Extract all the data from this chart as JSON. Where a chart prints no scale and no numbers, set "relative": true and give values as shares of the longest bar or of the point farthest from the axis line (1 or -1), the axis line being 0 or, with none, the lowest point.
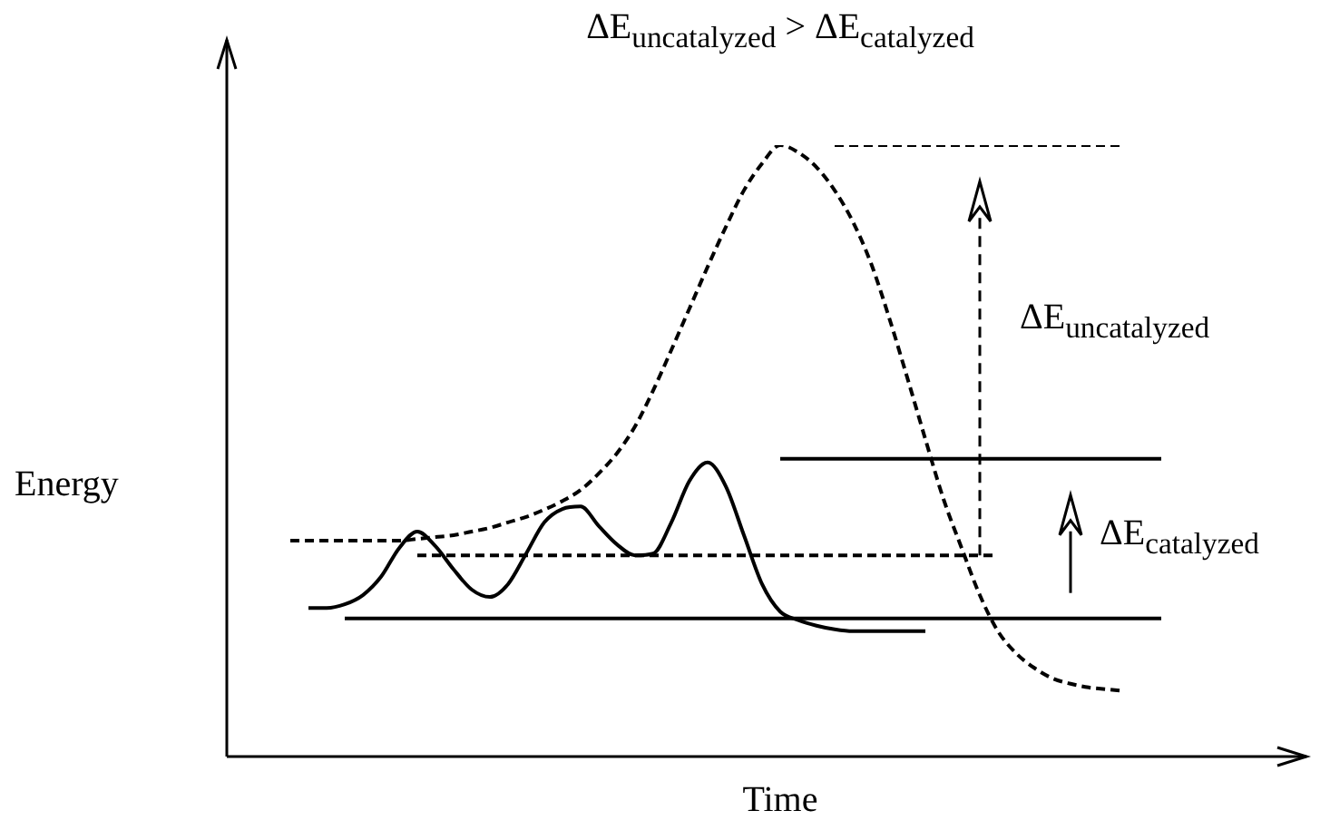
{
  "chart_data": {
    "type": "line",
    "relative": true,
    "title": "ΔE$_{uncatalyzed}$ > ΔE$_{catalyzed}$",
    "xlabel": "Time",
    "ylabel": "Energy",
    "annotations": [
      "ΔE$_{uncatalyzed}$",
      "ΔE$_{catalyzed}$"
    ],
    "legend": false,
    "marker": "none",
    "categories": [
      null,
      null,
      null,
      null,
      null,
      null,
      null,
      null,
      null,
      null,
      null,
      null,
      null,
      null,
      null,
      null,
      null,
      null,
      null,
      null,
      null,
      null,
      null,
      null,
      null,
      null,
      null,
      null,
      null,
      null,
      null,
      null,
      null,
      null,
      null,
      null,
      null,
      null,
      null,
      null,
      null,
      null,
      null,
      null,
      null,
      null,
      null,
      null,
      null
    ],
    "series": [
      {
        "color": "#000000",
        "line_style": "dashed",
        "values": [
          0.353,
          0.353,
          0.353,
          0.353,
          0.353,
          0.353,
          0.353,
          0.356,
          0.359,
          0.362,
          0.368,
          0.374,
          0.383,
          0.392,
          0.404,
          0.418,
          0.436,
          0.463,
          0.496,
          0.54,
          0.599,
          0.665,
          0.733,
          0.801,
          0.866,
          0.926,
          0.97,
          1,
          0.988,
          0.964,
          0.926,
          0.875,
          0.807,
          0.718,
          0.62,
          0.519,
          0.421,
          0.341,
          0.264,
          0.205,
          0.169,
          0.145,
          0.128,
          0.119,
          0.113,
          0.11,
          0.107,
          null,
          null
        ]
      },
      {
        "color": "#000000",
        "line_style": "solid",
        "values": [
          null,
          0.243,
          0.243,
          0.249,
          0.264,
          0.294,
          0.341,
          0.368,
          0.344,
          0.306,
          0.273,
          0.261,
          0.282,
          0.332,
          0.383,
          0.405,
          0.409,
          0.377,
          0.347,
          0.329,
          0.332,
          0.383,
          0.451,
          0.481,
          0.442,
          0.362,
          0.282,
          0.237,
          0.223,
          0.214,
          0.208,
          0.205,
          0.205,
          0.205,
          0.205,
          0.205,
          null,
          null,
          null,
          null,
          null,
          null,
          null,
          null,
          null,
          null,
          null,
          null,
          null
        ]
      },
      {
        "color": "#000000",
        "line_style": "dashed",
        "values": [
          null,
          null,
          null,
          null,
          null,
          null,
          null,
          0.329,
          0.329,
          0.329,
          0.329,
          0.329,
          0.329,
          0.329,
          0.329,
          0.329,
          0.329,
          0.329,
          0.329,
          0.329,
          0.329,
          0.329,
          0.329,
          0.329,
          0.329,
          0.329,
          0.329,
          0.329,
          0.329,
          0.329,
          0.329,
          0.329,
          0.329,
          0.329,
          0.329,
          0.329,
          0.329,
          0.329,
          0.329,
          0.329,
          null,
          null,
          null,
          null,
          null,
          null,
          null,
          null,
          null
        ]
      },
      {
        "color": "#000000",
        "line_style": "dashed",
        "values": [
          null,
          null,
          null,
          null,
          null,
          null,
          null,
          null,
          null,
          null,
          null,
          null,
          null,
          null,
          null,
          null,
          null,
          null,
          null,
          null,
          null,
          null,
          null,
          null,
          null,
          null,
          null,
          null,
          null,
          null,
          1,
          1,
          1,
          1,
          1,
          1,
          1,
          1,
          1,
          1,
          1,
          1,
          1,
          1,
          1,
          1,
          1,
          null,
          null
        ]
      },
      {
        "color": "#000000",
        "line_style": "solid",
        "values": [
          null,
          null,
          null,
          0.226,
          0.226,
          0.226,
          0.226,
          0.226,
          0.226,
          0.226,
          0.226,
          0.226,
          0.226,
          0.226,
          0.226,
          0.226,
          0.226,
          0.226,
          0.226,
          0.226,
          0.226,
          0.226,
          0.226,
          0.226,
          0.226,
          0.226,
          0.226,
          0.226,
          0.226,
          0.226,
          0.226,
          0.226,
          0.226,
          0.226,
          0.226,
          0.226,
          0.226,
          0.226,
          0.226,
          0.226,
          0.226,
          0.226,
          0.226,
          0.226,
          0.226,
          0.226,
          0.226,
          0.226,
          0.226
        ]
      },
      {
        "color": "#000000",
        "line_style": "solid",
        "values": [
          null,
          null,
          null,
          null,
          null,
          null,
          null,
          null,
          null,
          null,
          null,
          null,
          null,
          null,
          null,
          null,
          null,
          null,
          null,
          null,
          null,
          null,
          null,
          null,
          null,
          null,
          null,
          0.487,
          0.487,
          0.487,
          0.487,
          0.487,
          0.487,
          0.487,
          0.487,
          0.487,
          0.487,
          0.487,
          0.487,
          0.487,
          0.487,
          0.487,
          0.487,
          0.487,
          0.487,
          0.487,
          0.487,
          0.487,
          0.487
        ]
      }
    ]
  }
}
